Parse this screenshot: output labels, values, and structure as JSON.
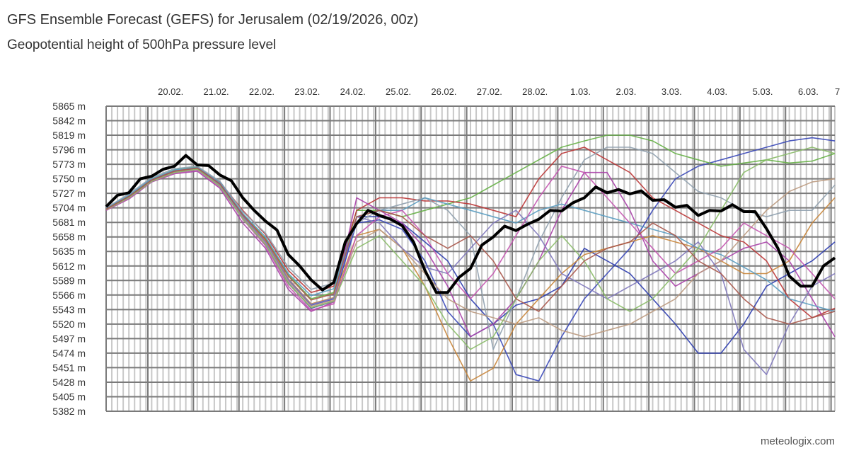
{
  "header": {
    "title": "GFS Ensemble Forecast (GEFS) for Jerusalem (02/19/2026, 00z)",
    "subtitle": "Geopotential height of 500hPa pressure level"
  },
  "credit": "meteologix.com",
  "chart_data": {
    "type": "line",
    "title": "GFS Ensemble Forecast (GEFS) for Jerusalem (02/19/2026, 00z)",
    "subtitle": "Geopotential height of 500hPa pressure level",
    "xlabel": "",
    "ylabel": "",
    "x_range": [
      "2026-02-19T02:00",
      "2026-03-07T02:00"
    ],
    "ylim": [
      5382,
      5865
    ],
    "y_unit": "m",
    "y_ticks": [
      "5865 m",
      "5842 m",
      "5819 m",
      "5796 m",
      "5773 m",
      "5750 m",
      "5727 m",
      "5704 m",
      "5681 m",
      "5658 m",
      "5635 m",
      "5612 m",
      "5589 m",
      "5566 m",
      "5543 m",
      "5520 m",
      "5497 m",
      "5474 m",
      "5451 m",
      "5428 m",
      "5405 m",
      "5382 m"
    ],
    "x_ticks": [
      {
        "label": "20.02.",
        "date": "2026-02-20"
      },
      {
        "label": "21.02.",
        "date": "2026-02-21"
      },
      {
        "label": "22.02.",
        "date": "2026-02-22"
      },
      {
        "label": "23.02.",
        "date": "2026-02-23"
      },
      {
        "label": "24.02.",
        "date": "2026-02-24"
      },
      {
        "label": "25.02.",
        "date": "2026-02-25"
      },
      {
        "label": "26.02.",
        "date": "2026-02-26"
      },
      {
        "label": "27.02.",
        "date": "2026-02-27"
      },
      {
        "label": "28.02.",
        "date": "2026-02-28"
      },
      {
        "label": "1.03.",
        "date": "2026-03-01"
      },
      {
        "label": "2.03.",
        "date": "2026-03-02"
      },
      {
        "label": "3.03.",
        "date": "2026-03-03"
      },
      {
        "label": "4.03.",
        "date": "2026-03-04"
      },
      {
        "label": "5.03.",
        "date": "2026-03-05"
      },
      {
        "label": "6.03.",
        "date": "2026-03-06"
      },
      {
        "label": "7",
        "date": "2026-03-07"
      }
    ],
    "grid": true,
    "legend": "none",
    "mean": {
      "color": "#000000",
      "times": [
        "2026-02-19T02:00",
        "2026-02-19T08:00",
        "2026-02-19T14:00",
        "2026-02-19T20:00",
        "2026-02-20T02:00",
        "2026-02-20T08:00",
        "2026-02-20T14:00",
        "2026-02-20T20:00",
        "2026-02-21T02:00",
        "2026-02-21T08:00",
        "2026-02-21T14:00",
        "2026-02-21T20:00",
        "2026-02-22T02:00",
        "2026-02-22T08:00",
        "2026-02-22T14:00",
        "2026-02-22T20:00",
        "2026-02-23T02:00",
        "2026-02-23T08:00",
        "2026-02-23T14:00",
        "2026-02-23T20:00",
        "2026-02-24T02:00",
        "2026-02-24T08:00",
        "2026-02-24T14:00",
        "2026-02-24T20:00",
        "2026-02-25T02:00",
        "2026-02-25T08:00",
        "2026-02-25T14:00",
        "2026-02-25T20:00",
        "2026-02-26T02:00",
        "2026-02-26T08:00",
        "2026-02-26T14:00",
        "2026-02-26T20:00",
        "2026-02-27T02:00",
        "2026-02-27T08:00",
        "2026-02-27T14:00",
        "2026-02-27T20:00",
        "2026-02-28T02:00",
        "2026-02-28T08:00",
        "2026-02-28T14:00",
        "2026-02-28T20:00",
        "2026-03-01T02:00",
        "2026-03-01T08:00",
        "2026-03-01T14:00",
        "2026-03-01T20:00",
        "2026-03-02T02:00",
        "2026-03-02T08:00",
        "2026-03-02T14:00",
        "2026-03-02T20:00",
        "2026-03-03T02:00",
        "2026-03-03T08:00",
        "2026-03-03T14:00",
        "2026-03-03T20:00",
        "2026-03-04T02:00",
        "2026-03-04T08:00",
        "2026-03-04T14:00",
        "2026-03-04T20:00",
        "2026-03-05T02:00",
        "2026-03-05T08:00",
        "2026-03-05T14:00",
        "2026-03-05T20:00",
        "2026-03-06T02:00",
        "2026-03-06T08:00",
        "2026-03-06T14:00",
        "2026-03-06T20:00",
        "2026-03-07T02:00"
      ],
      "values": [
        5706,
        5724,
        5728,
        5750,
        5754,
        5765,
        5770,
        5787,
        5772,
        5771,
        5756,
        5747,
        5720,
        5700,
        5683,
        5669,
        5630,
        5612,
        5590,
        5574,
        5586,
        5650,
        5679,
        5700,
        5692,
        5686,
        5676,
        5650,
        5605,
        5570,
        5570,
        5594,
        5608,
        5645,
        5658,
        5675,
        5668,
        5678,
        5686,
        5700,
        5699,
        5712,
        5720,
        5737,
        5728,
        5733,
        5726,
        5731,
        5716,
        5717,
        5705,
        5708,
        5692,
        5700,
        5699,
        5709,
        5698,
        5698,
        5671,
        5640,
        5596,
        5580,
        5580,
        5612,
        5625
      ]
    },
    "members_time_step": "12h from 2026-02-19T02:00",
    "members": [
      {
        "color": "#3a48b8",
        "values": [
          5702,
          5722,
          5748,
          5762,
          5768,
          5740,
          5690,
          5650,
          5590,
          5550,
          5560,
          5680,
          5685,
          5670,
          5620,
          5540,
          5500,
          5520,
          5440,
          5430,
          5500,
          5560,
          5600,
          5640,
          5700,
          5750,
          5770,
          5780,
          5790,
          5800,
          5810,
          5815,
          5810
        ]
      },
      {
        "color": "#2c3cae",
        "values": [
          5700,
          5720,
          5746,
          5760,
          5766,
          5738,
          5688,
          5645,
          5585,
          5545,
          5556,
          5690,
          5690,
          5680,
          5650,
          5620,
          5560,
          5520,
          5550,
          5560,
          5580,
          5640,
          5620,
          5600,
          5560,
          5520,
          5474,
          5474,
          5520,
          5580,
          5600,
          5620,
          5650
        ]
      },
      {
        "color": "#66b046",
        "values": [
          5703,
          5723,
          5750,
          5764,
          5769,
          5742,
          5694,
          5655,
          5598,
          5560,
          5570,
          5700,
          5700,
          5690,
          5700,
          5710,
          5720,
          5740,
          5760,
          5780,
          5800,
          5810,
          5819,
          5819,
          5810,
          5790,
          5780,
          5770,
          5775,
          5780,
          5775,
          5778,
          5790
        ]
      },
      {
        "color": "#bb3636",
        "values": [
          5702,
          5722,
          5749,
          5763,
          5767,
          5745,
          5700,
          5662,
          5605,
          5570,
          5580,
          5700,
          5720,
          5720,
          5715,
          5715,
          5710,
          5700,
          5690,
          5750,
          5790,
          5800,
          5780,
          5760,
          5720,
          5700,
          5680,
          5660,
          5650,
          5620,
          5560,
          5530,
          5545
        ]
      },
      {
        "color": "#a840a8",
        "values": [
          5700,
          5718,
          5745,
          5758,
          5762,
          5735,
          5680,
          5640,
          5575,
          5540,
          5555,
          5720,
          5700,
          5680,
          5640,
          5580,
          5500,
          5520,
          5560,
          5620,
          5700,
          5760,
          5760,
          5700,
          5620,
          5580,
          5600,
          5620,
          5640,
          5650,
          5620,
          5560,
          5500
        ]
      },
      {
        "color": "#c8853a",
        "values": [
          5701,
          5721,
          5747,
          5761,
          5766,
          5741,
          5692,
          5652,
          5592,
          5552,
          5562,
          5660,
          5670,
          5640,
          5580,
          5500,
          5430,
          5450,
          5520,
          5560,
          5600,
          5630,
          5640,
          5650,
          5660,
          5650,
          5640,
          5620,
          5600,
          5600,
          5620,
          5680,
          5720
        ]
      },
      {
        "color": "#8fa0ae",
        "values": [
          5704,
          5726,
          5752,
          5766,
          5770,
          5746,
          5698,
          5664,
          5610,
          5575,
          5585,
          5680,
          5700,
          5710,
          5720,
          5700,
          5660,
          5480,
          5560,
          5650,
          5720,
          5780,
          5800,
          5800,
          5790,
          5760,
          5730,
          5720,
          5700,
          5690,
          5700,
          5700,
          5740
        ]
      },
      {
        "color": "#5a9cc0",
        "values": [
          5703,
          5724,
          5750,
          5764,
          5768,
          5744,
          5695,
          5658,
          5600,
          5565,
          5576,
          5690,
          5700,
          5700,
          5720,
          5710,
          5700,
          5690,
          5680,
          5700,
          5710,
          5700,
          5690,
          5680,
          5670,
          5660,
          5640,
          5630,
          5610,
          5590,
          5560,
          5550,
          5540
        ]
      },
      {
        "color": "#bb9a80",
        "values": [
          5701,
          5720,
          5747,
          5761,
          5765,
          5739,
          5689,
          5648,
          5588,
          5548,
          5558,
          5650,
          5670,
          5640,
          5600,
          5560,
          5540,
          5530,
          5520,
          5530,
          5510,
          5500,
          5510,
          5520,
          5540,
          5560,
          5600,
          5620,
          5660,
          5700,
          5730,
          5745,
          5750
        ]
      },
      {
        "color": "#8078bb",
        "values": [
          5702,
          5721,
          5748,
          5762,
          5767,
          5741,
          5691,
          5650,
          5591,
          5551,
          5561,
          5690,
          5680,
          5640,
          5610,
          5600,
          5640,
          5680,
          5700,
          5660,
          5600,
          5580,
          5560,
          5580,
          5600,
          5620,
          5650,
          5600,
          5480,
          5440,
          5520,
          5580,
          5600
        ]
      },
      {
        "color": "#c455b0",
        "values": [
          5700,
          5719,
          5746,
          5759,
          5764,
          5737,
          5686,
          5644,
          5580,
          5542,
          5552,
          5660,
          5690,
          5700,
          5660,
          5600,
          5560,
          5600,
          5660,
          5720,
          5770,
          5760,
          5720,
          5680,
          5640,
          5600,
          5620,
          5640,
          5680,
          5660,
          5640,
          5600,
          5560
        ]
      },
      {
        "color": "#8abb68",
        "values": [
          5701,
          5720,
          5746,
          5760,
          5765,
          5738,
          5687,
          5646,
          5584,
          5546,
          5556,
          5640,
          5660,
          5620,
          5580,
          5520,
          5480,
          5500,
          5560,
          5620,
          5660,
          5620,
          5560,
          5540,
          5560,
          5600,
          5640,
          5700,
          5760,
          5780,
          5790,
          5800,
          5790
        ]
      },
      {
        "color": "#a8564a",
        "values": [
          5702,
          5722,
          5748,
          5762,
          5767,
          5742,
          5693,
          5654,
          5596,
          5558,
          5568,
          5690,
          5700,
          5690,
          5660,
          5640,
          5660,
          5620,
          5560,
          5540,
          5580,
          5620,
          5640,
          5650,
          5680,
          5660,
          5620,
          5600,
          5560,
          5530,
          5520,
          5530,
          5540
        ]
      }
    ]
  }
}
